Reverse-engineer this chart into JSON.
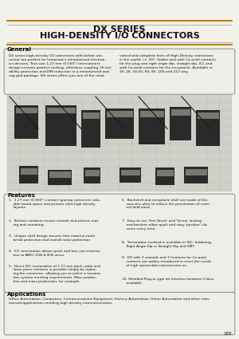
{
  "title_line1": "DX SERIES",
  "title_line2": "HIGH-DENSITY I/O CONNECTORS",
  "bg_color": "#f2f1ec",
  "section_general_title": "General",
  "general_text1": "DX series high-density I/O connectors with below con-nector are perfect for tomorrow's miniaturized electron-ics devices. True size 1.27 mm (0.050\") interconnect design ensures positive locking, effortless coupling. Hi-reli-ability protection and EMI reduction in a miniaturized and rug-ged package. DX series offers you one of the most",
  "general_text2": "varied and complete lines of High-Density connectors in the world, i.e. IDC, Solder and with Co-axial contacts for the plug and right angle dip, straight dip, ICC and with Co-axial contacts for the receptacle. Available in 20, 26, 34,50, 60, 80, 100 and 152 way.",
  "section_features_title": "Features",
  "features_left": [
    "1.  1.27 mm (0.050\") contact spacing conserves valu-able board space and permits ultra-high density layouts.",
    "2.  Bellows contacts ensure smooth and precise mating and unmating.",
    "3.  Unique shell design assures firm mate/un-mate break pro-tection and overall noise protection.",
    "4.  ICC termination allows quick and low cost termina-tion to AWG (22B & B30 wires.",
    "5.  Direct IDC termination of 1.27 mm pitch cable and loose piece contacts is possible simply by replac-ing the connector, allowing you to select a termina-tion system meeting requirements. Mass produc-tion and mass production, for example."
  ],
  "features_right": [
    "6.  Backshell and receptacle shell are made of Die-cast zinc alloy to reduce the penetration of exter-nal field noise.",
    "7.  Easy to use 'One-Touch' and 'Screw' locking mechanisms allow quick and easy 'positive' clo-sures every time.",
    "8.  Termination method is available in IDC, Soldering, Right Angle Dip or Straight Dip and SMT.",
    "9.  DX with 3 coaxials and 3 Contacts for Co-axial contacts are widely introduced to meet the needs of high speed data transmission on.",
    "10. Shielded Plug-in type for interface between 2 bins available."
  ],
  "section_applications_title": "Applications",
  "applications_text": "Office Automation, Computers, Communications Equipment, Factory Automation, Home Automation and other com-mercial applications needing high density interconnections.",
  "page_number": "189",
  "title_color": "#111111",
  "section_title_color": "#000000",
  "body_text_color": "#111111",
  "accent_color": "#b8860b",
  "line_color": "#999999",
  "box_edge_color": "#777777",
  "box_face_color": "#eeede8"
}
